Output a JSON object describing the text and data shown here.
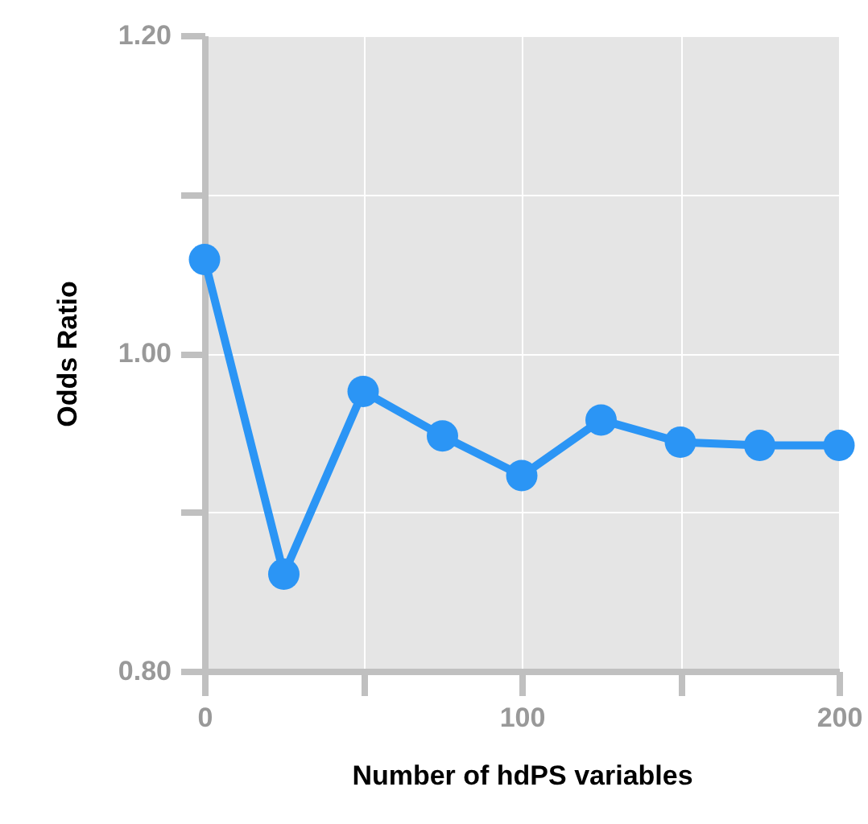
{
  "chart_data": {
    "type": "line",
    "xlabel": "Number of hdPS variables",
    "ylabel": "Odds Ratio",
    "x": [
      0,
      25,
      50,
      75,
      100,
      125,
      150,
      175,
      200
    ],
    "series": [
      {
        "color": "#2b95f5",
        "values": [
          1.059,
          0.861,
          0.976,
          0.948,
          0.923,
          0.958,
          0.944,
          0.942,
          0.942
        ]
      }
    ],
    "xlim": [
      0,
      200
    ],
    "ylim": [
      0.8,
      1.2
    ],
    "xticks": [
      0,
      {
        "value": 50,
        "label": null
      },
      100,
      {
        "value": 150,
        "label": null
      },
      200
    ],
    "yticks": [
      {
        "value": 0.8,
        "label": "0.80"
      },
      {
        "value": 0.9,
        "label": null
      },
      {
        "value": 1.0,
        "label": "1.00"
      },
      {
        "value": 1.1,
        "label": null
      },
      {
        "value": 1.2,
        "label": "1.20"
      }
    ],
    "grid": true,
    "marker": "circle",
    "line_style": "solid",
    "legend": false
  }
}
